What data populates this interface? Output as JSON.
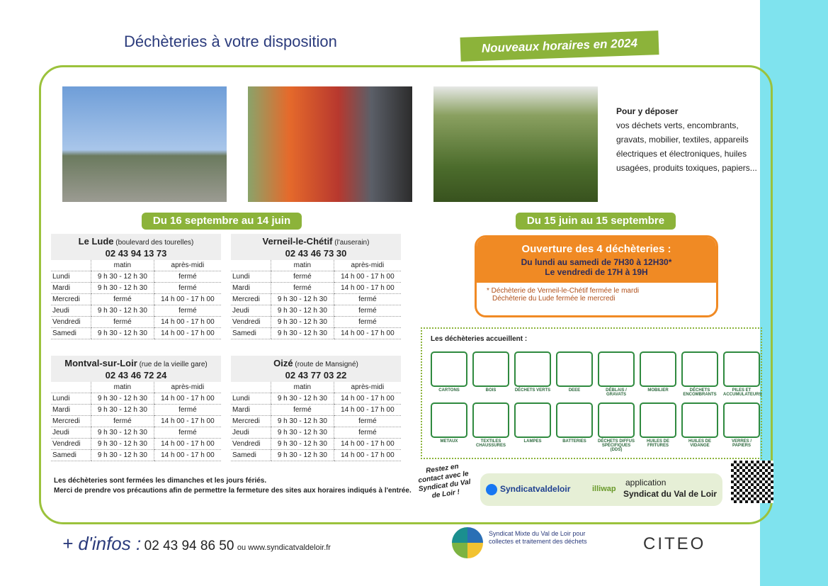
{
  "header": {
    "title": "Déchèteries à votre disposition",
    "badge": "Nouveaux horaires en 2024"
  },
  "deposit": {
    "heading": "Pour y déposer",
    "text": "vos déchets verts, encombrants, gravats, mobilier, textiles, appareils électriques et électroniques, huiles usagées, produits toxiques, papiers..."
  },
  "period1": "Du 16 septembre au 14 juin",
  "columns": [
    "matin",
    "après-midi"
  ],
  "sites": [
    {
      "name": "Le Lude",
      "place": "(boulevard des tourelles)",
      "phone": "02 43 94 13 73",
      "rows": [
        [
          "Lundi",
          "9 h 30 - 12 h 30",
          "fermé"
        ],
        [
          "Mardi",
          "9 h 30 - 12 h 30",
          "fermé"
        ],
        [
          "Mercredi",
          "fermé",
          "14 h 00 - 17 h 00"
        ],
        [
          "Jeudi",
          "9 h 30 - 12 h 30",
          "fermé"
        ],
        [
          "Vendredi",
          "fermé",
          "14 h 00 - 17 h 00"
        ],
        [
          "Samedi",
          "9 h 30 - 12 h 30",
          "14 h 00 - 17 h 00"
        ]
      ]
    },
    {
      "name": "Verneil-le-Chétif",
      "place": "(l'auserain)",
      "phone": "02 43 46 73 30",
      "rows": [
        [
          "Lundi",
          "fermé",
          "14 h 00 - 17 h 00"
        ],
        [
          "Mardi",
          "fermé",
          "14 h 00 - 17 h 00"
        ],
        [
          "Mercredi",
          "9 h 30 - 12 h 30",
          "fermé"
        ],
        [
          "Jeudi",
          "9 h 30 - 12 h 30",
          "fermé"
        ],
        [
          "Vendredi",
          "9 h 30 - 12 h 30",
          "fermé"
        ],
        [
          "Samedi",
          "9 h 30 - 12 h 30",
          "14 h 00 - 17 h 00"
        ]
      ]
    },
    {
      "name": "Montval-sur-Loir",
      "place": "(rue de la vieille gare)",
      "phone": "02 43 46 72 24",
      "rows": [
        [
          "Lundi",
          "9 h 30 - 12 h 30",
          "14 h 00 - 17 h 00"
        ],
        [
          "Mardi",
          "9 h 30 - 12 h 30",
          "fermé"
        ],
        [
          "Mercredi",
          "fermé",
          "14 h 00 - 17 h 00"
        ],
        [
          "Jeudi",
          "9 h 30 - 12 h 30",
          "fermé"
        ],
        [
          "Vendredi",
          "9 h 30 - 12 h 30",
          "14 h 00 - 17 h 00"
        ],
        [
          "Samedi",
          "9 h 30 - 12 h 30",
          "14 h 00 - 17 h 00"
        ]
      ]
    },
    {
      "name": "Oizé",
      "place": "(route de Mansigné)",
      "phone": "02 43 77 03 22",
      "rows": [
        [
          "Lundi",
          "9 h 30 - 12 h 30",
          "14 h 00 - 17 h 00"
        ],
        [
          "Mardi",
          "fermé",
          "14 h 00 - 17 h 00"
        ],
        [
          "Mercredi",
          "9 h 30 - 12 h 30",
          "fermé"
        ],
        [
          "Jeudi",
          "9 h 30 - 12 h 30",
          "fermé"
        ],
        [
          "Vendredi",
          "9 h 30 - 12 h 30",
          "14 h 00 - 17 h 00"
        ],
        [
          "Samedi",
          "9 h 30 - 12 h 30",
          "14 h 00 - 17 h 00"
        ]
      ]
    }
  ],
  "period2": "Du 15 juin au 15 septembre",
  "summer": {
    "title": "Ouverture des 4 déchèteries :",
    "line1": "Du lundi au samedi de 7H30 à 12H30*",
    "line2": "Le vendredi de 17H à 19H",
    "note1": "* Déchèterie de Verneil-le-Chétif fermée le mardi",
    "note2": "Déchèterie du Lude fermée le mercredi"
  },
  "accepted": {
    "title": "Les déchèteries accueillent :",
    "items": [
      "CARTONS",
      "BOIS",
      "DÉCHETS VERTS",
      "DEEE",
      "DÉBLAIS / GRAVATS",
      "MOBILIER",
      "DÉCHETS ENCOMBRANTS",
      "PILES ET ACCUMULATEURS",
      "METAUX",
      "TEXTILES CHAUSSURES",
      "LAMPES",
      "BATTERIES",
      "DÉCHETS DIFFUS SPÉCIFIQUES (DDS)",
      "HUILES DE FRITURES",
      "HUILES DE VIDANGE",
      "VERRES / PAPIERS"
    ]
  },
  "notes": [
    "Les déchèteries sont fermées les dimanches et les jours fériés.",
    "Merci de prendre vos précautions afin de permettre la fermeture des sites aux horaires indiqués à l'entrée."
  ],
  "contact": {
    "text": "Restez en contact avec le Syndicat du Val de Loir !",
    "facebook": "Syndicatvaldeloir",
    "illiwap": "illiwap",
    "app": "application",
    "app_name": "Syndicat du Val de Loir"
  },
  "footer": {
    "infos": "+ d'infos :",
    "phone": "02 43 94 86 50",
    "web": "ou www.syndicatvaldeloir.fr",
    "logo": "Syndicat Mixte du Val de Loir pour collectes et traitement des déchets",
    "citeo": "CITEO"
  }
}
